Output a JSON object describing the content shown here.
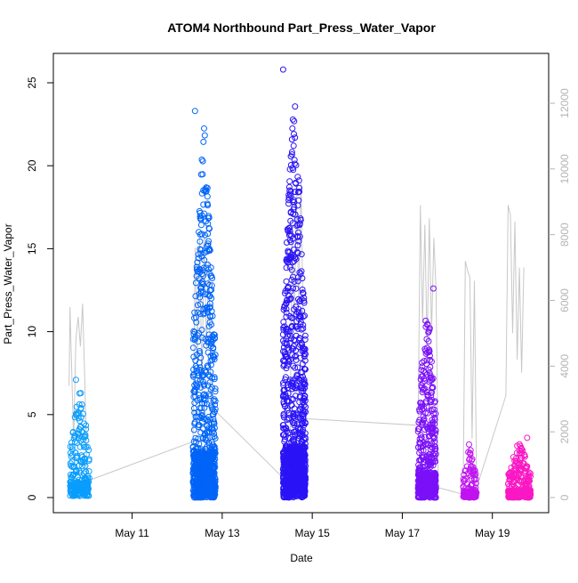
{
  "chart_data": {
    "type": "scatter",
    "title": "ATOM4 Northbound Part_Press_Water_Vapor",
    "xlabel": "Date",
    "ylabel": "Part_Press_Water_Vapor",
    "x_ticks": [
      "May 11",
      "May 13",
      "May 15",
      "May 17",
      "May 19"
    ],
    "x_tick_days": [
      11,
      13,
      15,
      17,
      19
    ],
    "xlim_days": [
      9.25,
      20.25
    ],
    "ylim": [
      0,
      25
    ],
    "y_ticks": [
      0,
      5,
      10,
      15,
      20,
      25
    ],
    "y2lim": [
      0,
      12000
    ],
    "y2_ticks": [
      0,
      2000,
      4000,
      6000,
      8000,
      10000,
      12000
    ],
    "grid": false,
    "legend": "none",
    "colors": {
      "day_1": "#0a9dfc",
      "day_2": "#0064f8",
      "day_3": "#2a14f6",
      "day_4": "#7a10f8",
      "day_5": "#c014f0",
      "day_6": "#fa18c4",
      "secondary_line": "#c8c8c8",
      "axis": "#000000",
      "secondary_axis": "#b4b4b4"
    },
    "clusters": [
      {
        "day_start": 9.62,
        "day_end": 10.05,
        "y_min": 0.1,
        "y_max": 7.1,
        "density": 260,
        "color_key": "day_1"
      },
      {
        "day_start": 12.35,
        "day_end": 12.85,
        "y_min": 0.0,
        "y_max": 23.3,
        "density": 900,
        "color_key": "day_2"
      },
      {
        "day_start": 14.35,
        "day_end": 14.85,
        "y_min": 0.0,
        "y_max": 25.8,
        "density": 1100,
        "color_key": "day_3"
      },
      {
        "day_start": 17.35,
        "day_end": 17.75,
        "y_min": 0.0,
        "y_max": 12.6,
        "density": 520,
        "color_key": "day_4"
      },
      {
        "day_start": 18.35,
        "day_end": 18.65,
        "y_min": 0.0,
        "y_max": 3.2,
        "density": 160,
        "color_key": "day_5"
      },
      {
        "day_start": 19.35,
        "day_end": 19.85,
        "y_min": 0.0,
        "y_max": 3.6,
        "density": 320,
        "color_key": "day_6"
      }
    ],
    "secondary_series": [
      [
        9.6,
        3400
      ],
      [
        9.62,
        5800
      ],
      [
        9.65,
        4200
      ],
      [
        9.7,
        1700
      ],
      [
        9.75,
        4800
      ],
      [
        9.8,
        5500
      ],
      [
        9.85,
        4600
      ],
      [
        9.9,
        5900
      ],
      [
        9.95,
        3500
      ],
      [
        10.0,
        500
      ],
      [
        12.35,
        1700
      ],
      [
        12.4,
        7600
      ],
      [
        12.45,
        4200
      ],
      [
        12.5,
        7900
      ],
      [
        12.55,
        3200
      ],
      [
        12.6,
        8100
      ],
      [
        12.65,
        4500
      ],
      [
        12.7,
        7200
      ],
      [
        12.75,
        3000
      ],
      [
        12.8,
        2700
      ],
      [
        14.5,
        400
      ],
      [
        14.55,
        8200
      ],
      [
        14.6,
        5000
      ],
      [
        14.65,
        9200
      ],
      [
        14.7,
        6000
      ],
      [
        14.75,
        9600
      ],
      [
        14.8,
        5200
      ],
      [
        14.85,
        2400
      ],
      [
        17.35,
        2200
      ],
      [
        17.4,
        8900
      ],
      [
        17.45,
        5300
      ],
      [
        17.5,
        8300
      ],
      [
        17.55,
        4600
      ],
      [
        17.6,
        8500
      ],
      [
        17.65,
        5000
      ],
      [
        17.7,
        7900
      ],
      [
        17.75,
        6300
      ],
      [
        17.8,
        300
      ],
      [
        18.35,
        100
      ],
      [
        18.4,
        7200
      ],
      [
        18.45,
        6900
      ],
      [
        18.5,
        6700
      ],
      [
        18.55,
        1800
      ],
      [
        18.6,
        6600
      ],
      [
        18.65,
        300
      ],
      [
        19.3,
        3100
      ],
      [
        19.35,
        8900
      ],
      [
        19.4,
        8600
      ],
      [
        19.45,
        5000
      ],
      [
        19.5,
        8400
      ],
      [
        19.55,
        4200
      ],
      [
        19.6,
        7000
      ],
      [
        19.65,
        3800
      ],
      [
        19.7,
        7000
      ]
    ]
  }
}
